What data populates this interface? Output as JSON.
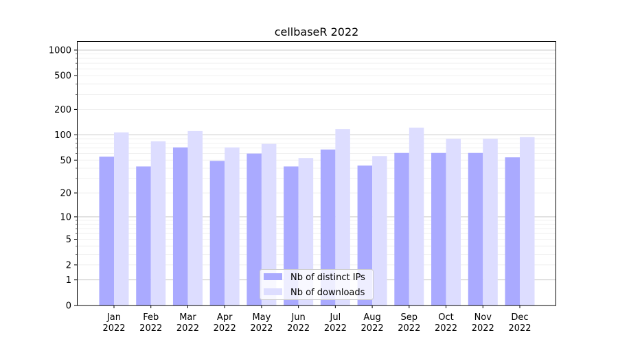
{
  "chart_data": {
    "type": "bar",
    "title": "cellbaseR 2022",
    "xlabel": "",
    "ylabel": "",
    "yscale": "symlog (log10(1+y))",
    "ylim": [
      0,
      1200
    ],
    "yticks": [
      0,
      1,
      2,
      5,
      10,
      20,
      50,
      100,
      200,
      500,
      1000
    ],
    "grid": true,
    "legend_position": "bottom-center",
    "categories": [
      "Jan\n2022",
      "Feb\n2022",
      "Mar\n2022",
      "Apr\n2022",
      "May\n2022",
      "Jun\n2022",
      "Jul\n2022",
      "Aug\n2022",
      "Sep\n2022",
      "Oct\n2022",
      "Nov\n2022",
      "Dec\n2022"
    ],
    "series": [
      {
        "name": "Nb of distinct IPs",
        "color": "#aaaaff",
        "values": [
          55,
          42,
          71,
          49,
          60,
          42,
          67,
          43,
          61,
          61,
          61,
          54
        ]
      },
      {
        "name": "Nb of downloads",
        "color": "#ddddff",
        "values": [
          107,
          84,
          111,
          71,
          78,
          53,
          117,
          56,
          122,
          90,
          90,
          94
        ]
      }
    ]
  }
}
